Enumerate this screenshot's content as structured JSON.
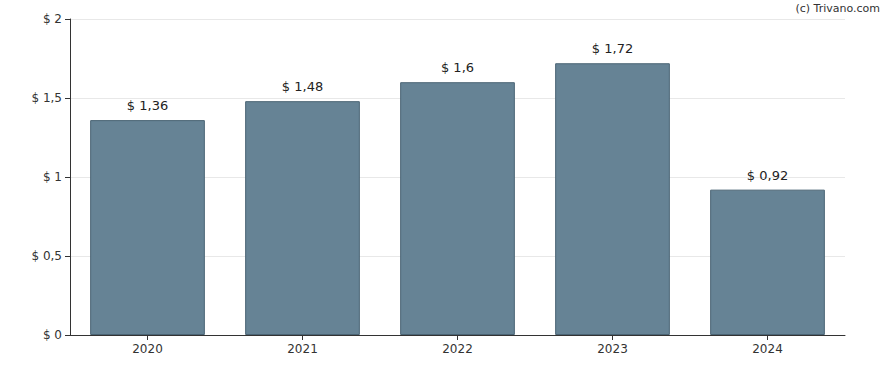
{
  "chart_data": {
    "type": "bar",
    "categories": [
      "2020",
      "2021",
      "2022",
      "2023",
      "2024"
    ],
    "values": [
      1.36,
      1.48,
      1.6,
      1.72,
      0.92
    ],
    "value_labels": [
      "$ 1,36",
      "$ 1,48",
      "$ 1,6",
      "$ 1,72",
      "$ 0,92"
    ],
    "data_labels": true,
    "color": "#668395",
    "ylim": [
      0,
      2
    ],
    "yticks": [
      {
        "value": 0,
        "label": "$ 0"
      },
      {
        "value": 0.5,
        "label": "$ 0,5"
      },
      {
        "value": 1,
        "label": "$ 1"
      },
      {
        "value": 1.5,
        "label": "$ 1,5"
      },
      {
        "value": 2,
        "label": "$ 2"
      }
    ],
    "grid": true,
    "annotations": [
      "(c) Trivano.com"
    ]
  }
}
